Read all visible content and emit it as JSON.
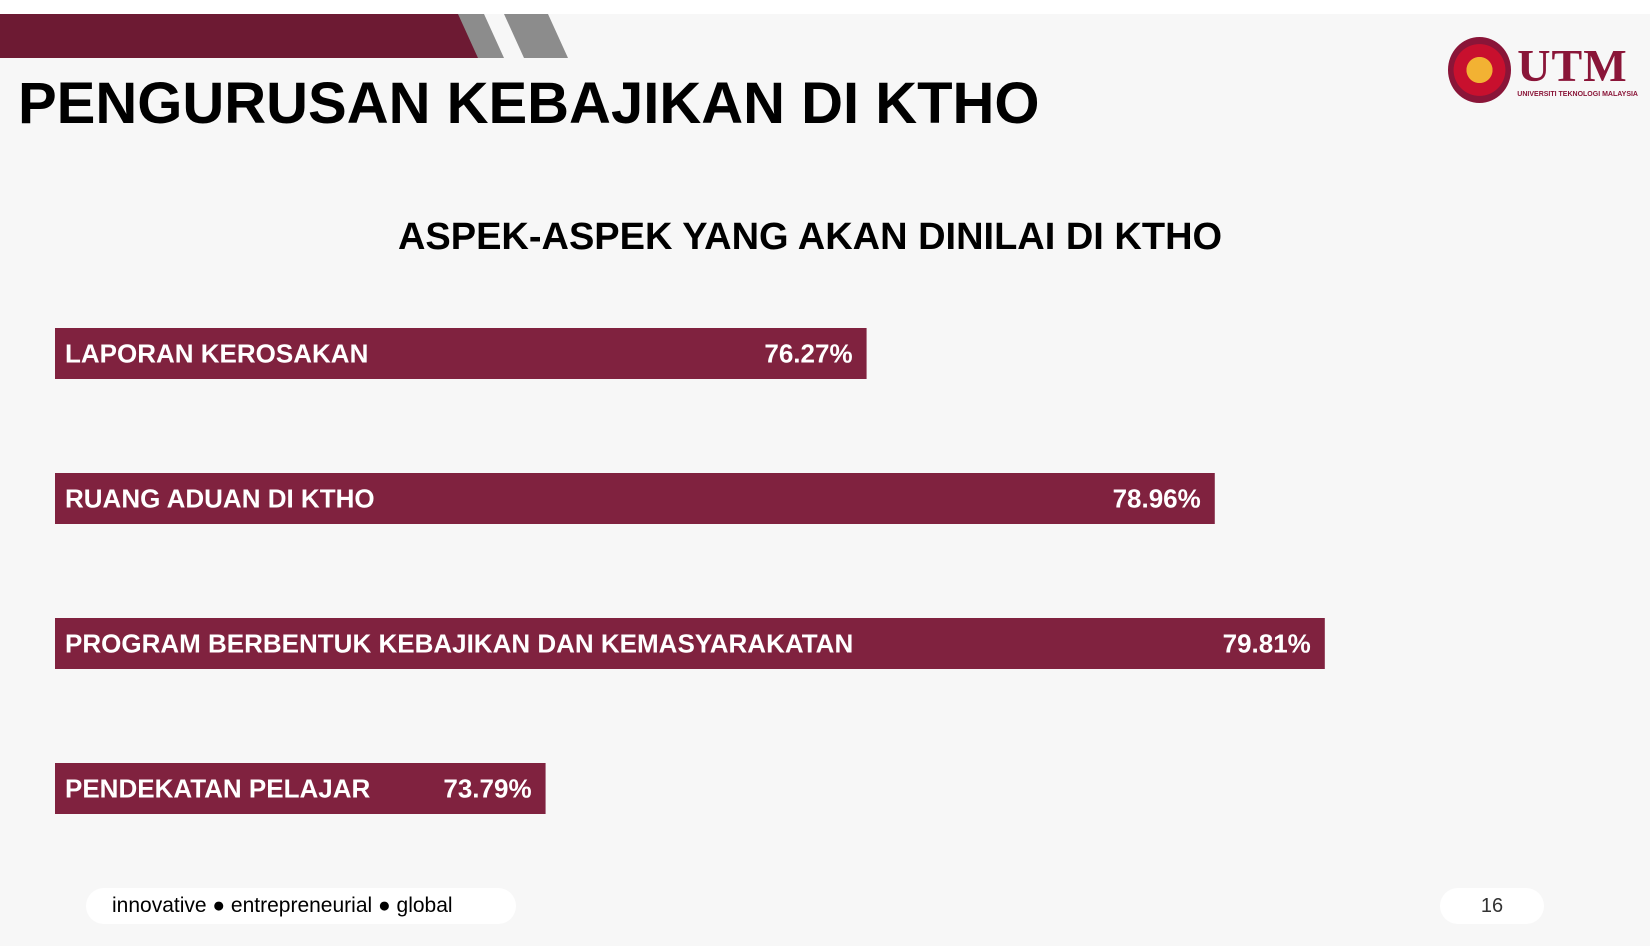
{
  "slide": {
    "title": "PENGURUSAN KEBAJIKAN DI KTHO",
    "footer_tagline": "innovative ● entrepreneurial ● global",
    "page_number": "16"
  },
  "logo": {
    "wordmark": "UTM",
    "subtitle": "UNIVERSITI TEKNOLOGI MALAYSIA"
  },
  "colors": {
    "brand": "#7f2240",
    "bar": "#80223f",
    "accent_grey": "#8c8c8c"
  },
  "chart_data": {
    "type": "bar",
    "orientation": "horizontal",
    "title": "ASPEK-ASPEK YANG AKAN DINILAI DI KTHO",
    "categories": [
      "LAPORAN KEROSAKAN",
      "RUANG ADUAN DI KTHO",
      "PROGRAM BERBENTUK KEBAJIKAN DAN KEMASYARAKATAN",
      "PENDEKATAN PELAJAR"
    ],
    "values": [
      76.27,
      78.96,
      79.81,
      73.79
    ],
    "value_labels": [
      "76.27%",
      "78.96%",
      "79.81%",
      "73.79%"
    ],
    "unit": "%",
    "xlim": [
      70,
      80.7
    ],
    "grid": false,
    "legend": "none"
  }
}
